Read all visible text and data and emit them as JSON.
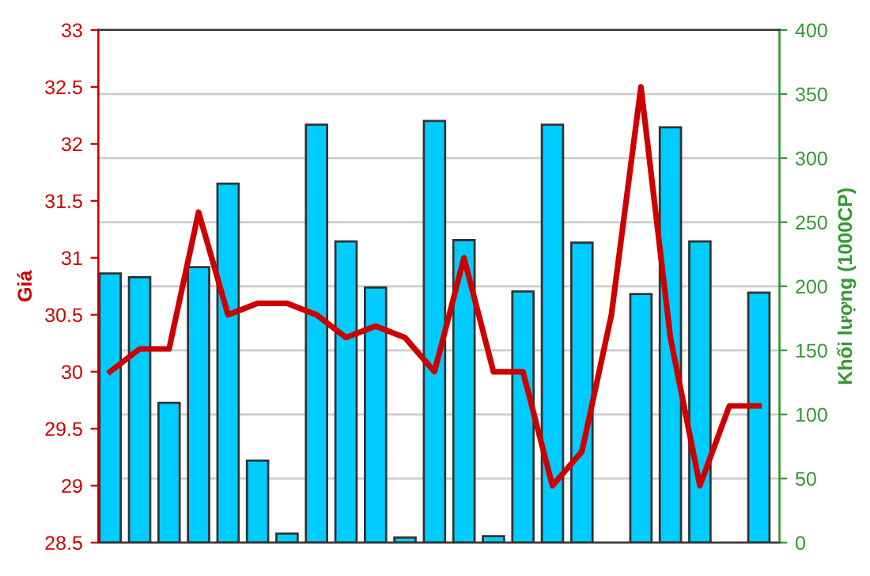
{
  "chart_data": {
    "type": "bar",
    "ylabel": "Giá",
    "y2label": "Khối lượng (1000CP)",
    "categories": [
      null,
      null,
      null,
      null,
      null,
      null,
      null,
      null,
      null,
      null,
      null,
      null,
      null,
      null,
      null,
      null,
      null,
      null,
      null,
      null,
      null,
      null,
      null
    ],
    "series": [
      {
        "axis": "y2",
        "color": "#00ccff",
        "values": [
          210,
          207,
          109,
          215,
          280,
          64,
          7,
          326,
          235,
          199,
          4,
          329,
          236,
          5,
          196,
          326,
          234,
          null,
          194,
          324,
          235,
          null,
          195
        ]
      },
      {
        "type": "line",
        "axis": "y",
        "color": "#cc0000",
        "values": [
          30.0,
          30.2,
          30.2,
          31.4,
          30.5,
          30.6,
          30.6,
          30.5,
          30.3,
          30.4,
          30.3,
          30.0,
          31.0,
          30.0,
          30.0,
          29.0,
          29.3,
          30.5,
          32.5,
          30.3,
          29.0,
          29.7,
          29.7
        ]
      }
    ],
    "ylim": [
      28.5,
      33
    ],
    "yticks": [
      28.5,
      29,
      29.5,
      30,
      30.5,
      31,
      31.5,
      32,
      32.5,
      33
    ],
    "y2lim": [
      0,
      400
    ],
    "y2ticks": [
      0,
      50,
      100,
      150,
      200,
      250,
      300,
      350,
      400
    ],
    "grid": "y",
    "legend": false,
    "marker": "none",
    "line_style": "solid"
  }
}
